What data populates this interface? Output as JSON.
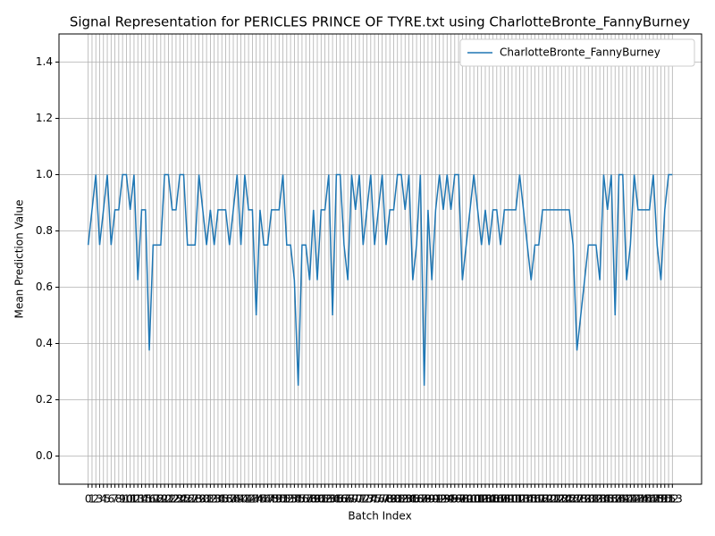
{
  "chart_data": {
    "type": "line",
    "title": "Signal Representation for PERICLES PRINCE OF TYRE.txt using CharlotteBronte_FannyBurney",
    "x_label": "Batch Index",
    "y_label": "Mean Prediction Value",
    "grid": true,
    "legend": "upper right",
    "xlim": [
      -7.65,
      160.65
    ],
    "ylim": [
      -0.1,
      1.5
    ],
    "yticks": [
      {
        "value": 0,
        "label": "0.0"
      },
      0.2,
      0.4,
      0.6,
      0.8,
      {
        "value": 1,
        "label": "1.0"
      },
      1.2,
      1.4
    ],
    "xticks": [
      0,
      1,
      2,
      3,
      4,
      5,
      6,
      7,
      8,
      9,
      10,
      11,
      12,
      13,
      14,
      15,
      16,
      17,
      18,
      19,
      20,
      21,
      22,
      23,
      24,
      25,
      26,
      27,
      28,
      29,
      30,
      31,
      32,
      33,
      34,
      35,
      36,
      37,
      38,
      39,
      40,
      41,
      42,
      43,
      44,
      45,
      46,
      47,
      48,
      49,
      50,
      51,
      52,
      53,
      54,
      55,
      56,
      57,
      58,
      59,
      60,
      61,
      62,
      63,
      64,
      65,
      66,
      67,
      68,
      69,
      70,
      71,
      72,
      73,
      74,
      75,
      76,
      77,
      78,
      79,
      80,
      81,
      82,
      83,
      84,
      85,
      86,
      87,
      88,
      89,
      90,
      91,
      92,
      93,
      94,
      95,
      96,
      97,
      98,
      99,
      100,
      101,
      102,
      103,
      104,
      105,
      106,
      107,
      108,
      109,
      110,
      111,
      112,
      113,
      114,
      115,
      116,
      117,
      118,
      119,
      120,
      121,
      122,
      123,
      124,
      125,
      126,
      127,
      128,
      129,
      130,
      131,
      132,
      133,
      134,
      135,
      136,
      137,
      138,
      139,
      140,
      141,
      142,
      143,
      144,
      145,
      146,
      147,
      148,
      149,
      150,
      151,
      152,
      153
    ],
    "x": [
      0,
      1,
      2,
      3,
      4,
      5,
      6,
      7,
      8,
      9,
      10,
      11,
      12,
      13,
      14,
      15,
      16,
      17,
      18,
      19,
      20,
      21,
      22,
      23,
      24,
      25,
      26,
      27,
      28,
      29,
      30,
      31,
      32,
      33,
      34,
      35,
      36,
      37,
      38,
      39,
      40,
      41,
      42,
      43,
      44,
      45,
      46,
      47,
      48,
      49,
      50,
      51,
      52,
      53,
      54,
      55,
      56,
      57,
      58,
      59,
      60,
      61,
      62,
      63,
      64,
      65,
      66,
      67,
      68,
      69,
      70,
      71,
      72,
      73,
      74,
      75,
      76,
      77,
      78,
      79,
      80,
      81,
      82,
      83,
      84,
      85,
      86,
      87,
      88,
      89,
      90,
      91,
      92,
      93,
      94,
      95,
      96,
      97,
      98,
      99,
      100,
      101,
      102,
      103,
      104,
      105,
      106,
      107,
      108,
      109,
      110,
      111,
      112,
      113,
      114,
      115,
      116,
      117,
      118,
      119,
      120,
      121,
      122,
      123,
      124,
      125,
      126,
      127,
      128,
      129,
      130,
      131,
      132,
      133,
      134,
      135,
      136,
      137,
      138,
      139,
      140,
      141,
      142,
      143,
      144,
      145,
      146,
      147,
      148,
      149,
      150,
      151,
      152,
      153
    ],
    "series": [
      {
        "name": "CharlotteBronte_FannyBurney",
        "color": "#1f77b4",
        "values": [
          0.75,
          0.875,
          1.0,
          0.75,
          0.875,
          1.0,
          0.75,
          0.875,
          0.875,
          1.0,
          1.0,
          0.875,
          1.0,
          0.625,
          0.875,
          0.875,
          0.375,
          0.75,
          0.75,
          0.75,
          1.0,
          1.0,
          0.875,
          0.875,
          1.0,
          1.0,
          0.75,
          0.75,
          0.75,
          1.0,
          0.875,
          0.75,
          0.875,
          0.75,
          0.875,
          0.875,
          0.875,
          0.75,
          0.875,
          1.0,
          0.75,
          1.0,
          0.875,
          0.875,
          0.5,
          0.875,
          0.75,
          0.75,
          0.875,
          0.875,
          0.875,
          1.0,
          0.75,
          0.75,
          0.625,
          0.25,
          0.75,
          0.75,
          0.625,
          0.875,
          0.625,
          0.875,
          0.875,
          1.0,
          0.5,
          1.0,
          1.0,
          0.75,
          0.625,
          1.0,
          0.875,
          1.0,
          0.75,
          0.875,
          1.0,
          0.75,
          0.875,
          1.0,
          0.75,
          0.875,
          0.875,
          1.0,
          1.0,
          0.875,
          1.0,
          0.625,
          0.75,
          1.0,
          0.25,
          0.875,
          0.625,
          0.875,
          1.0,
          0.875,
          1.0,
          0.875,
          1.0,
          1.0,
          0.625,
          0.75,
          0.875,
          1.0,
          0.875,
          0.75,
          0.875,
          0.75,
          0.875,
          0.875,
          0.75,
          0.875,
          0.875,
          0.875,
          0.875,
          1.0,
          0.875,
          0.75,
          0.625,
          0.75,
          0.75,
          0.875,
          0.875,
          0.875,
          0.875,
          0.875,
          0.875,
          0.875,
          0.875,
          0.75,
          0.375,
          0.5,
          0.625,
          0.75,
          0.75,
          0.75,
          0.625,
          1.0,
          0.875,
          1.0,
          0.5,
          1.0,
          1.0,
          0.625,
          0.75,
          1.0,
          0.875,
          0.875,
          0.875,
          0.875,
          1.0,
          0.75,
          0.625,
          0.875,
          1.0,
          1.0
        ]
      }
    ]
  }
}
